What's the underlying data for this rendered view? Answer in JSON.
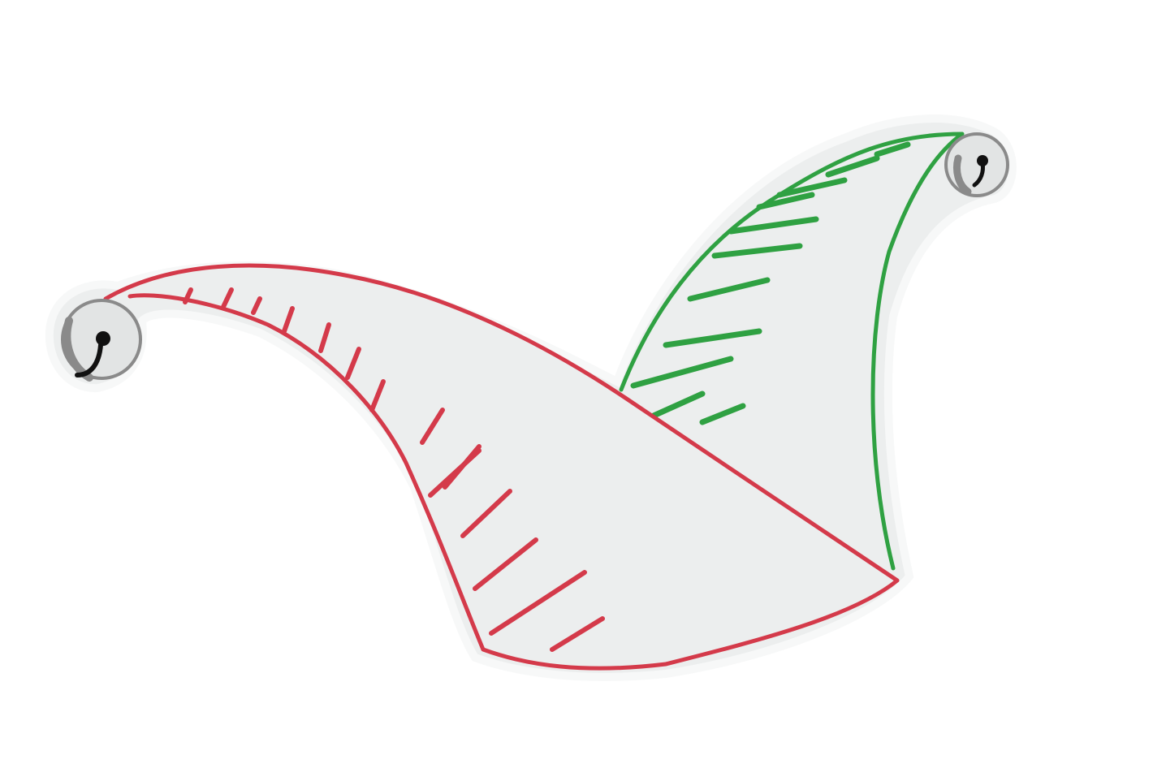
{
  "image": {
    "subject": "jester-hat-drawing",
    "colors": {
      "background": "#ffffff",
      "paper": "#eceeee",
      "paper_edge": "#f7f8f8",
      "red_outline": "#d43a4a",
      "green_outline": "#2fa142",
      "bell_shadow": "#8a8a8a",
      "bell_fill": "#e2e4e4",
      "ink": "#111111"
    },
    "icons": [
      "bell-icon",
      "bell-icon"
    ]
  }
}
